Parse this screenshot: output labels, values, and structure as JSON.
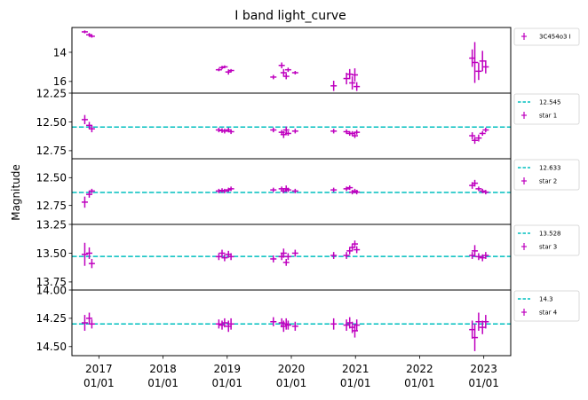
{
  "chart_data": {
    "type": "scatter",
    "title": "I band light_curve",
    "ylabel": "Magnitude",
    "x_tick_labels": [
      [
        "2017",
        "01/01"
      ],
      [
        "2018",
        "01/01"
      ],
      [
        "2019",
        "01/01"
      ],
      [
        "2020",
        "01/01"
      ],
      [
        "2021",
        "01/01"
      ],
      [
        "2022",
        "01/01"
      ],
      [
        "2023",
        "01/01"
      ]
    ],
    "x_tick_years": [
      2017,
      2018,
      2019,
      2020,
      2021,
      2022,
      2023
    ],
    "xlim": [
      2016.58,
      2023.42
    ],
    "marker_color": "#bf00bf",
    "line_color": "#00bfbf",
    "panels": [
      {
        "name": "3C454o3 I",
        "ylim": [
          16.8,
          12.3
        ],
        "yticks": [
          14,
          16
        ],
        "ref_line": null,
        "points": [
          {
            "x": 2016.78,
            "y": 12.6,
            "e": 0.1
          },
          {
            "x": 2016.85,
            "y": 12.8,
            "e": 0.12
          },
          {
            "x": 2016.89,
            "y": 12.9,
            "e": 0.1
          },
          {
            "x": 2018.87,
            "y": 15.2,
            "e": 0.1
          },
          {
            "x": 2018.92,
            "y": 15.05,
            "e": 0.12
          },
          {
            "x": 2018.96,
            "y": 15.0,
            "e": 0.1
          },
          {
            "x": 2019.02,
            "y": 15.35,
            "e": 0.18
          },
          {
            "x": 2019.06,
            "y": 15.25,
            "e": 0.1
          },
          {
            "x": 2019.72,
            "y": 15.7,
            "e": 0.15
          },
          {
            "x": 2019.85,
            "y": 14.9,
            "e": 0.2
          },
          {
            "x": 2019.88,
            "y": 15.4,
            "e": 0.25
          },
          {
            "x": 2019.92,
            "y": 15.65,
            "e": 0.2
          },
          {
            "x": 2019.95,
            "y": 15.2,
            "e": 0.15
          },
          {
            "x": 2020.06,
            "y": 15.4,
            "e": 0.12
          },
          {
            "x": 2020.66,
            "y": 16.3,
            "e": 0.35
          },
          {
            "x": 2020.86,
            "y": 15.8,
            "e": 0.4
          },
          {
            "x": 2020.91,
            "y": 15.5,
            "e": 0.35
          },
          {
            "x": 2020.95,
            "y": 16.1,
            "e": 0.45
          },
          {
            "x": 2020.99,
            "y": 15.55,
            "e": 0.45
          },
          {
            "x": 2021.02,
            "y": 16.35,
            "e": 0.3
          },
          {
            "x": 2022.82,
            "y": 14.4,
            "e": 0.6
          },
          {
            "x": 2022.86,
            "y": 14.7,
            "e": 1.4
          },
          {
            "x": 2022.92,
            "y": 15.3,
            "e": 0.6
          },
          {
            "x": 2022.98,
            "y": 14.6,
            "e": 0.7
          },
          {
            "x": 2023.03,
            "y": 15.0,
            "e": 0.45
          }
        ]
      },
      {
        "name": "star 1",
        "ylim": [
          12.82,
          12.25
        ],
        "yticks": [
          12.25,
          12.5,
          12.75
        ],
        "ref_line": {
          "value": 12.545,
          "label": "12.545"
        },
        "points": [
          {
            "x": 2016.78,
            "y": 12.48,
            "e": 0.04
          },
          {
            "x": 2016.85,
            "y": 12.53,
            "e": 0.03
          },
          {
            "x": 2016.89,
            "y": 12.56,
            "e": 0.03
          },
          {
            "x": 2018.87,
            "y": 12.57,
            "e": 0.02
          },
          {
            "x": 2018.92,
            "y": 12.575,
            "e": 0.02
          },
          {
            "x": 2018.96,
            "y": 12.58,
            "e": 0.02
          },
          {
            "x": 2019.02,
            "y": 12.57,
            "e": 0.02
          },
          {
            "x": 2019.06,
            "y": 12.585,
            "e": 0.02
          },
          {
            "x": 2019.72,
            "y": 12.57,
            "e": 0.02
          },
          {
            "x": 2019.85,
            "y": 12.59,
            "e": 0.02
          },
          {
            "x": 2019.88,
            "y": 12.61,
            "e": 0.03
          },
          {
            "x": 2019.92,
            "y": 12.57,
            "e": 0.03
          },
          {
            "x": 2019.95,
            "y": 12.6,
            "e": 0.02
          },
          {
            "x": 2020.06,
            "y": 12.58,
            "e": 0.02
          },
          {
            "x": 2020.66,
            "y": 12.58,
            "e": 0.02
          },
          {
            "x": 2020.86,
            "y": 12.585,
            "e": 0.02
          },
          {
            "x": 2020.91,
            "y": 12.6,
            "e": 0.02
          },
          {
            "x": 2020.95,
            "y": 12.6,
            "e": 0.02
          },
          {
            "x": 2020.99,
            "y": 12.62,
            "e": 0.02
          },
          {
            "x": 2021.02,
            "y": 12.59,
            "e": 0.02
          },
          {
            "x": 2022.82,
            "y": 12.62,
            "e": 0.03
          },
          {
            "x": 2022.86,
            "y": 12.66,
            "e": 0.03
          },
          {
            "x": 2022.92,
            "y": 12.64,
            "e": 0.03
          },
          {
            "x": 2022.98,
            "y": 12.6,
            "e": 0.02
          },
          {
            "x": 2023.03,
            "y": 12.57,
            "e": 0.02
          }
        ]
      },
      {
        "name": "star 2",
        "ylim": [
          12.92,
          12.33
        ],
        "yticks": [
          12.5,
          12.75
        ],
        "ref_line": {
          "value": 12.633,
          "label": "12.633"
        },
        "points": [
          {
            "x": 2016.78,
            "y": 12.72,
            "e": 0.05
          },
          {
            "x": 2016.85,
            "y": 12.65,
            "e": 0.03
          },
          {
            "x": 2016.89,
            "y": 12.62,
            "e": 0.02
          },
          {
            "x": 2018.87,
            "y": 12.62,
            "e": 0.02
          },
          {
            "x": 2018.92,
            "y": 12.615,
            "e": 0.02
          },
          {
            "x": 2018.96,
            "y": 12.62,
            "e": 0.02
          },
          {
            "x": 2019.02,
            "y": 12.61,
            "e": 0.02
          },
          {
            "x": 2019.06,
            "y": 12.6,
            "e": 0.02
          },
          {
            "x": 2019.72,
            "y": 12.61,
            "e": 0.02
          },
          {
            "x": 2019.85,
            "y": 12.6,
            "e": 0.02
          },
          {
            "x": 2019.88,
            "y": 12.62,
            "e": 0.02
          },
          {
            "x": 2019.92,
            "y": 12.6,
            "e": 0.03
          },
          {
            "x": 2019.95,
            "y": 12.61,
            "e": 0.02
          },
          {
            "x": 2020.06,
            "y": 12.62,
            "e": 0.02
          },
          {
            "x": 2020.66,
            "y": 12.61,
            "e": 0.02
          },
          {
            "x": 2020.86,
            "y": 12.6,
            "e": 0.02
          },
          {
            "x": 2020.91,
            "y": 12.59,
            "e": 0.02
          },
          {
            "x": 2020.95,
            "y": 12.63,
            "e": 0.02
          },
          {
            "x": 2020.99,
            "y": 12.62,
            "e": 0.02
          },
          {
            "x": 2021.02,
            "y": 12.63,
            "e": 0.02
          },
          {
            "x": 2022.82,
            "y": 12.57,
            "e": 0.03
          },
          {
            "x": 2022.86,
            "y": 12.55,
            "e": 0.03
          },
          {
            "x": 2022.92,
            "y": 12.6,
            "e": 0.02
          },
          {
            "x": 2022.98,
            "y": 12.62,
            "e": 0.02
          },
          {
            "x": 2023.03,
            "y": 12.63,
            "e": 0.02
          }
        ]
      },
      {
        "name": "star 3",
        "ylim": [
          13.82,
          13.25
        ],
        "yticks": [
          13.25,
          13.5,
          13.75
        ],
        "ref_line": {
          "value": 13.528,
          "label": "13.528"
        },
        "points": [
          {
            "x": 2016.78,
            "y": 13.51,
            "e": 0.1
          },
          {
            "x": 2016.85,
            "y": 13.5,
            "e": 0.05
          },
          {
            "x": 2016.89,
            "y": 13.59,
            "e": 0.04
          },
          {
            "x": 2018.87,
            "y": 13.53,
            "e": 0.03
          },
          {
            "x": 2018.92,
            "y": 13.5,
            "e": 0.03
          },
          {
            "x": 2018.96,
            "y": 13.54,
            "e": 0.03
          },
          {
            "x": 2019.02,
            "y": 13.51,
            "e": 0.03
          },
          {
            "x": 2019.06,
            "y": 13.53,
            "e": 0.03
          },
          {
            "x": 2019.72,
            "y": 13.55,
            "e": 0.03
          },
          {
            "x": 2019.85,
            "y": 13.53,
            "e": 0.03
          },
          {
            "x": 2019.88,
            "y": 13.5,
            "e": 0.04
          },
          {
            "x": 2019.92,
            "y": 13.58,
            "e": 0.03
          },
          {
            "x": 2019.95,
            "y": 13.53,
            "e": 0.03
          },
          {
            "x": 2020.06,
            "y": 13.5,
            "e": 0.03
          },
          {
            "x": 2020.66,
            "y": 13.52,
            "e": 0.03
          },
          {
            "x": 2020.86,
            "y": 13.52,
            "e": 0.03
          },
          {
            "x": 2020.91,
            "y": 13.48,
            "e": 0.03
          },
          {
            "x": 2020.95,
            "y": 13.45,
            "e": 0.03
          },
          {
            "x": 2020.99,
            "y": 13.42,
            "e": 0.03
          },
          {
            "x": 2021.02,
            "y": 13.47,
            "e": 0.03
          },
          {
            "x": 2022.82,
            "y": 13.52,
            "e": 0.03
          },
          {
            "x": 2022.86,
            "y": 13.48,
            "e": 0.05
          },
          {
            "x": 2022.92,
            "y": 13.53,
            "e": 0.03
          },
          {
            "x": 2022.98,
            "y": 13.54,
            "e": 0.03
          },
          {
            "x": 2023.03,
            "y": 13.52,
            "e": 0.03
          }
        ]
      },
      {
        "name": "star 4",
        "ylim": [
          14.58,
          14.0
        ],
        "yticks": [
          14.0,
          14.25,
          14.5
        ],
        "ref_line": {
          "value": 14.3,
          "label": "14.3"
        },
        "points": [
          {
            "x": 2016.78,
            "y": 14.29,
            "e": 0.07
          },
          {
            "x": 2016.85,
            "y": 14.25,
            "e": 0.05
          },
          {
            "x": 2016.89,
            "y": 14.3,
            "e": 0.04
          },
          {
            "x": 2018.87,
            "y": 14.3,
            "e": 0.04
          },
          {
            "x": 2018.92,
            "y": 14.31,
            "e": 0.04
          },
          {
            "x": 2018.96,
            "y": 14.29,
            "e": 0.04
          },
          {
            "x": 2019.02,
            "y": 14.32,
            "e": 0.05
          },
          {
            "x": 2019.06,
            "y": 14.3,
            "e": 0.05
          },
          {
            "x": 2019.72,
            "y": 14.28,
            "e": 0.04
          },
          {
            "x": 2019.85,
            "y": 14.29,
            "e": 0.04
          },
          {
            "x": 2019.88,
            "y": 14.32,
            "e": 0.05
          },
          {
            "x": 2019.92,
            "y": 14.3,
            "e": 0.05
          },
          {
            "x": 2019.95,
            "y": 14.31,
            "e": 0.04
          },
          {
            "x": 2020.06,
            "y": 14.32,
            "e": 0.04
          },
          {
            "x": 2020.66,
            "y": 14.3,
            "e": 0.05
          },
          {
            "x": 2020.86,
            "y": 14.31,
            "e": 0.05
          },
          {
            "x": 2020.91,
            "y": 14.29,
            "e": 0.05
          },
          {
            "x": 2020.95,
            "y": 14.33,
            "e": 0.05
          },
          {
            "x": 2020.99,
            "y": 14.36,
            "e": 0.06
          },
          {
            "x": 2021.02,
            "y": 14.31,
            "e": 0.05
          },
          {
            "x": 2022.82,
            "y": 14.35,
            "e": 0.08
          },
          {
            "x": 2022.86,
            "y": 14.42,
            "e": 0.12
          },
          {
            "x": 2022.92,
            "y": 14.28,
            "e": 0.08
          },
          {
            "x": 2022.98,
            "y": 14.33,
            "e": 0.06
          },
          {
            "x": 2023.03,
            "y": 14.28,
            "e": 0.06
          }
        ]
      }
    ]
  }
}
